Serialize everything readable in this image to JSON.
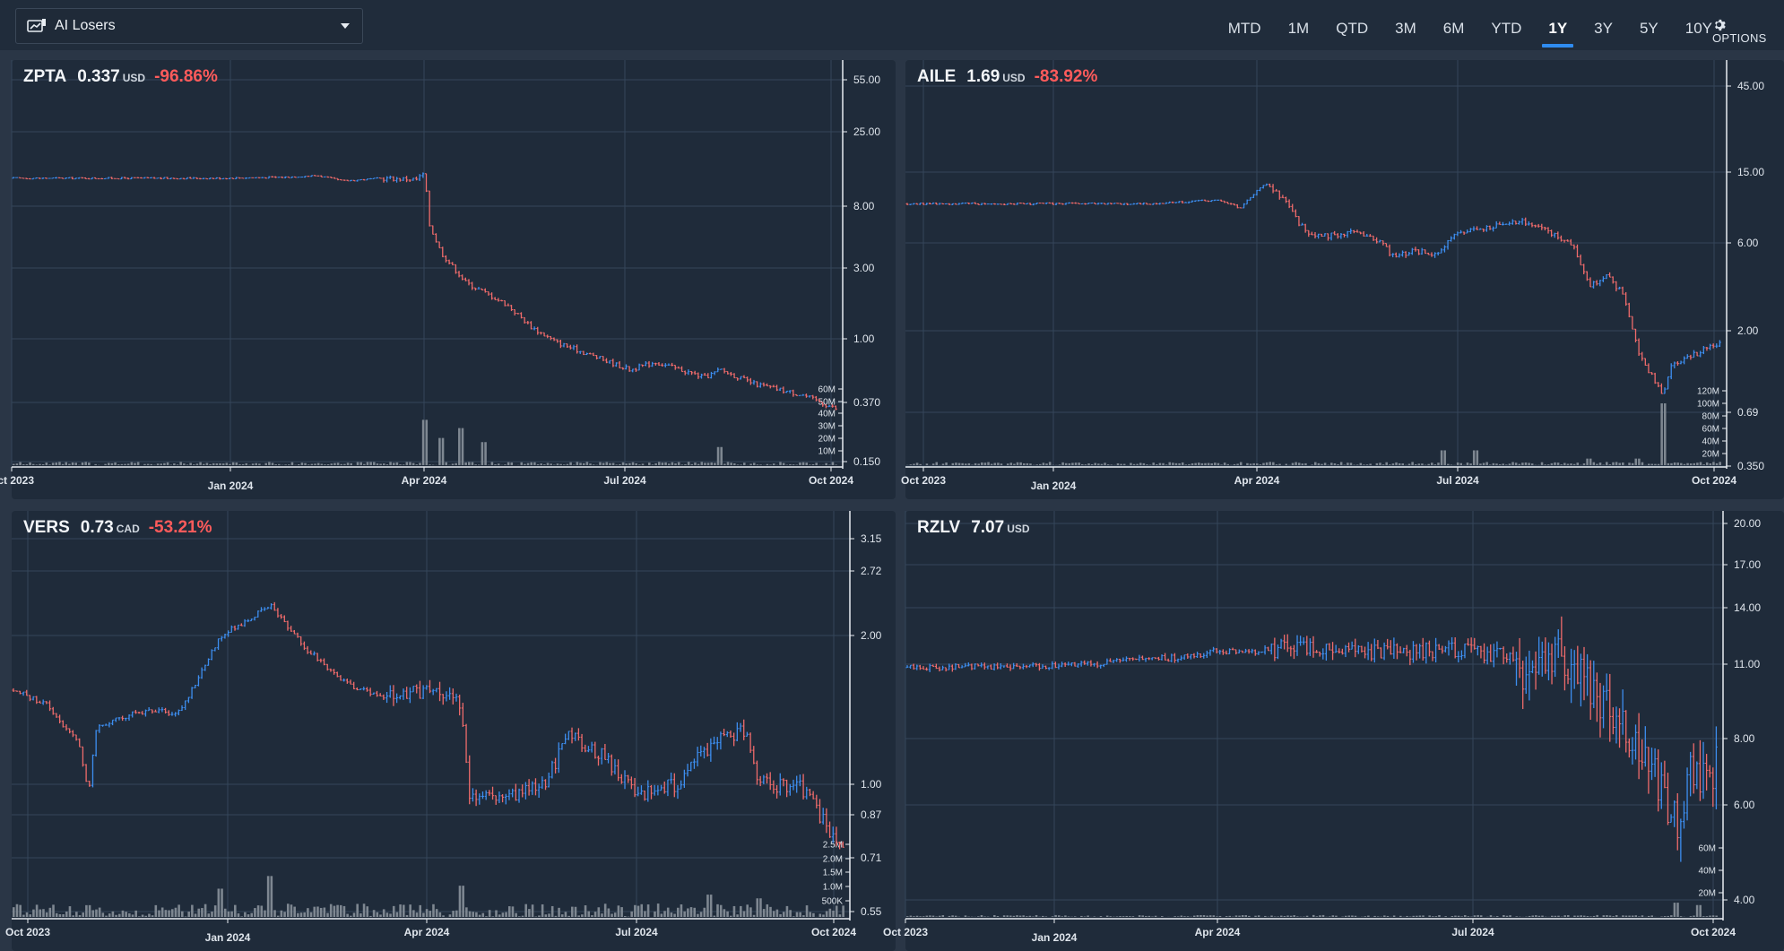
{
  "watchlist": {
    "name": "AI Losers",
    "icon": "watchlist-icon"
  },
  "ranges": [
    "MTD",
    "1M",
    "QTD",
    "3M",
    "6M",
    "YTD",
    "1Y",
    "3Y",
    "5Y",
    "10Y"
  ],
  "active_range": "1Y",
  "options_label": "OPTIONS",
  "colors": {
    "up": "#3d8ef0",
    "down": "#ef6b6b",
    "volume": "#7e8791",
    "change_negative": "#ff5b5b",
    "accent": "#2f8cf0"
  },
  "panels": [
    {
      "symbol": "ZPTA",
      "price": "0.337",
      "currency": "USD",
      "change": "-96.86%"
    },
    {
      "symbol": "AILE",
      "price": "1.69",
      "currency": "USD",
      "change": "-83.92%"
    },
    {
      "symbol": "VERS",
      "price": "0.73",
      "currency": "CAD",
      "change": "-53.21%"
    },
    {
      "symbol": "RZLV",
      "price": "7.07",
      "currency": "USD",
      "change": ""
    }
  ],
  "chart_data": [
    {
      "type": "ohlc",
      "title": "ZPTA",
      "x_ticks": [
        "Oct 2023",
        "Jan 2024",
        "Apr 2024",
        "Jul 2024",
        "Oct 2024"
      ],
      "y_ticks": [
        "55.00",
        "25.00",
        "8.00",
        "3.00",
        "1.00",
        "0.370",
        "0.150"
      ],
      "y_scale": "log",
      "volume_ticks": [
        "60M",
        "50M",
        "40M",
        "30M",
        "20M",
        "10M"
      ],
      "price_path": [
        [
          0,
          12
        ],
        [
          0.12,
          12
        ],
        [
          0.25,
          12
        ],
        [
          0.33,
          12.2
        ],
        [
          0.37,
          12.5
        ],
        [
          0.4,
          11.5
        ],
        [
          0.45,
          12
        ],
        [
          0.49,
          11.8
        ],
        [
          0.5,
          13
        ],
        [
          0.505,
          6
        ],
        [
          0.52,
          3.8
        ],
        [
          0.55,
          2.4
        ],
        [
          0.6,
          1.7
        ],
        [
          0.63,
          1.2
        ],
        [
          0.66,
          0.95
        ],
        [
          0.71,
          0.75
        ],
        [
          0.75,
          0.62
        ],
        [
          0.78,
          0.7
        ],
        [
          0.82,
          0.6
        ],
        [
          0.84,
          0.55
        ],
        [
          0.86,
          0.62
        ],
        [
          0.9,
          0.5
        ],
        [
          0.96,
          0.42
        ],
        [
          1,
          0.34
        ]
      ],
      "volume_spikes": [
        [
          0.5,
          0.55
        ],
        [
          0.52,
          0.33
        ],
        [
          0.545,
          0.45
        ],
        [
          0.57,
          0.28
        ],
        [
          0.86,
          0.22
        ]
      ]
    },
    {
      "type": "ohlc",
      "title": "AILE",
      "x_ticks": [
        "Oct 2023",
        "Jan 2024",
        "Apr 2024",
        "Jul 2024",
        "Oct 2024"
      ],
      "y_ticks": [
        "45.00",
        "15.00",
        "6.00",
        "2.00",
        "0.69",
        "0.350"
      ],
      "y_scale": "log",
      "volume_ticks": [
        "120M",
        "100M",
        "80M",
        "60M",
        "40M",
        "20M"
      ],
      "price_path": [
        [
          0,
          10
        ],
        [
          0.3,
          10
        ],
        [
          0.38,
          10.5
        ],
        [
          0.41,
          9.5
        ],
        [
          0.44,
          13
        ],
        [
          0.46,
          11
        ],
        [
          0.48,
          8
        ],
        [
          0.5,
          6.5
        ],
        [
          0.55,
          7
        ],
        [
          0.58,
          6.3
        ],
        [
          0.6,
          5
        ],
        [
          0.62,
          5.5
        ],
        [
          0.65,
          5.2
        ],
        [
          0.68,
          7
        ],
        [
          0.72,
          7.5
        ],
        [
          0.76,
          8
        ],
        [
          0.78,
          7.5
        ],
        [
          0.8,
          6.5
        ],
        [
          0.82,
          5.8
        ],
        [
          0.84,
          3.5
        ],
        [
          0.86,
          4
        ],
        [
          0.88,
          3.2
        ],
        [
          0.9,
          1.5
        ],
        [
          0.93,
          0.85
        ],
        [
          0.94,
          1.3
        ],
        [
          0.96,
          1.4
        ],
        [
          1,
          1.69
        ]
      ],
      "volume_spikes": [
        [
          0.66,
          0.18
        ],
        [
          0.7,
          0.18
        ],
        [
          0.84,
          0.08
        ],
        [
          0.9,
          0.08
        ],
        [
          0.93,
          0.75
        ]
      ]
    },
    {
      "type": "ohlc",
      "title": "VERS",
      "x_ticks": [
        "Oct 2023",
        "Jan 2024",
        "Apr 2024",
        "Jul 2024",
        "Oct 2024"
      ],
      "y_ticks": [
        "3.15",
        "2.72",
        "2.00",
        "1.00",
        "0.87",
        "0.71",
        "0.55"
      ],
      "y_scale": "log",
      "volume_ticks": [
        "2.5M",
        "2.0M",
        "1.5M",
        "1.0M",
        "500K"
      ],
      "price_path": [
        [
          0,
          1.55
        ],
        [
          0.04,
          1.45
        ],
        [
          0.08,
          1.2
        ],
        [
          0.09,
          0.95
        ],
        [
          0.1,
          1.3
        ],
        [
          0.15,
          1.4
        ],
        [
          0.2,
          1.4
        ],
        [
          0.25,
          2.0
        ],
        [
          0.31,
          2.3
        ],
        [
          0.35,
          1.9
        ],
        [
          0.4,
          1.6
        ],
        [
          0.45,
          1.5
        ],
        [
          0.5,
          1.55
        ],
        [
          0.54,
          1.45
        ],
        [
          0.55,
          0.95
        ],
        [
          0.6,
          0.95
        ],
        [
          0.64,
          1.0
        ],
        [
          0.67,
          1.25
        ],
        [
          0.71,
          1.15
        ],
        [
          0.75,
          0.95
        ],
        [
          0.8,
          1.0
        ],
        [
          0.84,
          1.2
        ],
        [
          0.88,
          1.3
        ],
        [
          0.9,
          1.0
        ],
        [
          0.95,
          0.98
        ],
        [
          1,
          0.73
        ]
      ],
      "volume_spikes": [
        [
          0.25,
          0.38
        ],
        [
          0.31,
          0.55
        ],
        [
          0.54,
          0.42
        ],
        [
          0.84,
          0.3
        ],
        [
          0.9,
          0.25
        ]
      ]
    },
    {
      "type": "ohlc",
      "title": "RZLV",
      "x_ticks": [
        "Oct 2023",
        "Jan 2024",
        "Apr 2024",
        "Jul 2024",
        "Oct 2024"
      ],
      "y_ticks": [
        "20.00",
        "17.00",
        "14.00",
        "11.00",
        "8.00",
        "6.00",
        "4.00"
      ],
      "y_scale": "log",
      "volume_ticks": [
        "60M",
        "40M",
        "20M"
      ],
      "price_path": [
        [
          0,
          10.8
        ],
        [
          0.2,
          10.9
        ],
        [
          0.3,
          11.2
        ],
        [
          0.35,
          11.3
        ],
        [
          0.38,
          11.6
        ],
        [
          0.42,
          11.5
        ],
        [
          0.48,
          11.8
        ],
        [
          0.55,
          11.6
        ],
        [
          0.7,
          11.6
        ],
        [
          0.74,
          11.4
        ],
        [
          0.77,
          10.5
        ],
        [
          0.8,
          11.5
        ],
        [
          0.84,
          10
        ],
        [
          0.87,
          9
        ],
        [
          0.9,
          7.5
        ],
        [
          0.93,
          6.5
        ],
        [
          0.95,
          5.5
        ],
        [
          0.97,
          7
        ],
        [
          1,
          7.07
        ]
      ],
      "volume_spikes": [
        [
          0.95,
          0.3
        ],
        [
          0.98,
          0.25
        ]
      ]
    }
  ]
}
